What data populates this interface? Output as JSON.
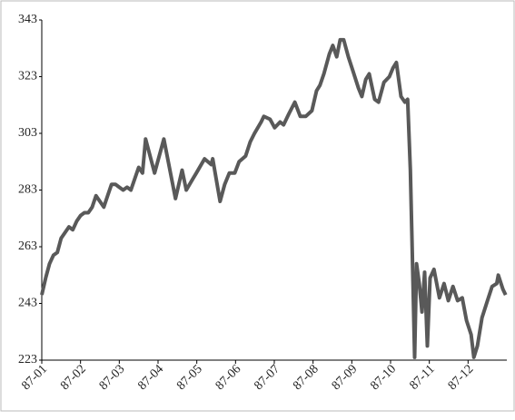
{
  "chart_data": {
    "type": "line",
    "color": "#595959",
    "x": [
      0,
      0.1,
      0.2,
      0.3,
      0.4,
      0.5,
      0.6,
      0.7,
      0.8,
      0.9,
      1.0,
      1.1,
      1.2,
      1.3,
      1.4,
      1.5,
      1.6,
      1.7,
      1.8,
      1.9,
      2.0,
      2.1,
      2.2,
      2.3,
      2.4,
      2.5,
      2.6,
      2.68,
      2.91,
      3.15,
      3.45,
      3.62,
      3.73,
      3.9,
      3.99,
      4.2,
      4.37,
      4.41,
      4.6,
      4.72,
      4.84,
      4.98,
      5.09,
      5.26,
      5.38,
      5.49,
      5.66,
      5.73,
      5.89,
      6.01,
      6.15,
      6.24,
      6.38,
      6.53,
      6.67,
      6.81,
      6.97,
      7.09,
      7.18,
      7.28,
      7.42,
      7.51,
      7.61,
      7.7,
      7.79,
      7.91,
      8.03,
      8.17,
      8.26,
      8.36,
      8.45,
      8.59,
      8.69,
      8.83,
      8.97,
      9.06,
      9.15,
      9.27,
      9.37,
      9.44,
      9.51,
      9.58,
      9.62,
      9.67,
      9.74,
      9.81,
      9.88,
      9.95,
      10.02,
      10.12,
      10.26,
      10.38,
      10.49,
      10.61,
      10.73,
      10.85,
      10.96,
      11.08,
      11.15,
      11.24,
      11.36,
      11.5,
      11.62,
      11.74,
      11.78,
      11.9,
      11.97
    ],
    "values": [
      246,
      252,
      257,
      260,
      261,
      266,
      268,
      270,
      269,
      272,
      274,
      275,
      275,
      277,
      281,
      279,
      277,
      281,
      285,
      285,
      284,
      283,
      284,
      283,
      287,
      291,
      289,
      301,
      289,
      301,
      280,
      290,
      283,
      287,
      289,
      294,
      292,
      294,
      279,
      285,
      289,
      289,
      293,
      295,
      300,
      303,
      307,
      309,
      308,
      305,
      307,
      306,
      310,
      314,
      309,
      309,
      311,
      318,
      320,
      324,
      331,
      334,
      330,
      336,
      336,
      330,
      325,
      319,
      316,
      322,
      324,
      315,
      314,
      321,
      323,
      326,
      328,
      316,
      314,
      315,
      290,
      250,
      224,
      257,
      250,
      240,
      254,
      228,
      252,
      255,
      245,
      250,
      244,
      249,
      244,
      245,
      237,
      232,
      224,
      228,
      238,
      244,
      249,
      250,
      253,
      248,
      246
    ],
    "xlim": [
      0,
      12
    ],
    "xticks": [
      {
        "value": 0,
        "label": "87-01"
      },
      {
        "value": 1,
        "label": "87-02"
      },
      {
        "value": 2,
        "label": "87-03"
      },
      {
        "value": 3,
        "label": "87-04"
      },
      {
        "value": 4,
        "label": "87-05"
      },
      {
        "value": 5,
        "label": "87-06"
      },
      {
        "value": 6,
        "label": "87-07"
      },
      {
        "value": 7,
        "label": "87-08"
      },
      {
        "value": 8,
        "label": "87-09"
      },
      {
        "value": 9,
        "label": "87-10"
      },
      {
        "value": 10,
        "label": "87-11"
      },
      {
        "value": 11,
        "label": "87-12"
      }
    ],
    "ylim": [
      223,
      343
    ],
    "yticks": [
      223,
      243,
      263,
      283,
      303,
      323,
      343
    ]
  }
}
